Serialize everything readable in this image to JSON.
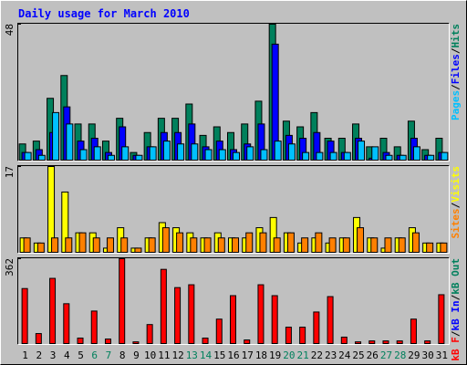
{
  "chart_data": [
    {
      "type": "bar",
      "title": "Daily usage for March 2010",
      "ylim": [
        0,
        48
      ],
      "yticks": [
        48
      ],
      "legend_separator": "/",
      "legend_reversed": true,
      "series": [
        {
          "name": "Hits",
          "color": "#00805c",
          "values": [
            6,
            7,
            22,
            30,
            13,
            13,
            7,
            15,
            3,
            10,
            15,
            15,
            20,
            9,
            12,
            10,
            13,
            21,
            48,
            14,
            12,
            17,
            8,
            8,
            13,
            5,
            8,
            5,
            14,
            4,
            8
          ]
        },
        {
          "name": "Files",
          "color": "#0000ff",
          "values": [
            3,
            4,
            10,
            19,
            7,
            8,
            3,
            12,
            2,
            5,
            10,
            10,
            13,
            5,
            7,
            4,
            6,
            13,
            41,
            9,
            8,
            10,
            7,
            3,
            8,
            1,
            3,
            2,
            8,
            2,
            3
          ]
        },
        {
          "name": "Pages",
          "color": "#00c0ff",
          "values": [
            3,
            2,
            17,
            13,
            4,
            5,
            2,
            5,
            2,
            5,
            7,
            6,
            6,
            4,
            4,
            3,
            5,
            4,
            7,
            6,
            3,
            3,
            3,
            3,
            7,
            5,
            2,
            2,
            5,
            2,
            3
          ]
        }
      ]
    },
    {
      "type": "bar",
      "ylim": [
        0,
        17
      ],
      "yticks": [
        17
      ],
      "legend_separator": "/",
      "legend_reversed": true,
      "series": [
        {
          "name": "Visits",
          "color": "#ffff00",
          "values": [
            3,
            2,
            17,
            12,
            4,
            4,
            1,
            5,
            1,
            3,
            6,
            5,
            4,
            3,
            4,
            3,
            3,
            5,
            7,
            4,
            2,
            3,
            2,
            3,
            7,
            3,
            1,
            3,
            5,
            2,
            2
          ]
        },
        {
          "name": "Sites",
          "color": "#ff8000",
          "values": [
            3,
            2,
            3,
            3,
            4,
            3,
            3,
            3,
            1,
            3,
            5,
            4,
            3,
            3,
            3,
            3,
            4,
            4,
            3,
            4,
            3,
            4,
            3,
            3,
            5,
            3,
            3,
            3,
            4,
            2,
            2
          ]
        }
      ]
    },
    {
      "type": "bar",
      "ylim": [
        0,
        362
      ],
      "yticks": [
        362
      ],
      "legend_separator": "/",
      "legend_reversed": false,
      "categories": [
        "1",
        "2",
        "3",
        "4",
        "5",
        "6",
        "7",
        "8",
        "9",
        "10",
        "11",
        "12",
        "13",
        "14",
        "15",
        "16",
        "17",
        "18",
        "19",
        "20",
        "21",
        "22",
        "23",
        "24",
        "25",
        "26",
        "27",
        "28",
        "29",
        "30",
        "31"
      ],
      "category_colors": [
        "#000000",
        "#000000",
        "#000000",
        "#000000",
        "#000000",
        "#00805c",
        "#00805c",
        "#000000",
        "#000000",
        "#000000",
        "#000000",
        "#000000",
        "#00805c",
        "#00805c",
        "#000000",
        "#000000",
        "#000000",
        "#000000",
        "#000000",
        "#00805c",
        "#00805c",
        "#000000",
        "#000000",
        "#000000",
        "#000000",
        "#000000",
        "#00805c",
        "#00805c",
        "#000000",
        "#000000",
        "#000000"
      ],
      "series": [
        {
          "name": "kB F",
          "color": "#ff0000",
          "values": [
            236,
            46,
            279,
            172,
            27,
            141,
            23,
            362,
            11,
            84,
            317,
            240,
            252,
            27,
            107,
            206,
            19,
            252,
            206,
            73,
            73,
            137,
            202,
            31,
            11,
            15,
            15,
            15,
            107,
            15,
            210
          ]
        },
        {
          "name": "kB In",
          "color": "#0000ff",
          "values": [
            0,
            0,
            0,
            0,
            0,
            0,
            0,
            0,
            0,
            0,
            0,
            0,
            0,
            0,
            0,
            0,
            0,
            0,
            0,
            0,
            0,
            0,
            0,
            0,
            0,
            0,
            0,
            0,
            0,
            0,
            0
          ]
        },
        {
          "name": "kB Out",
          "color": "#00805c",
          "values": [
            0,
            0,
            0,
            0,
            0,
            0,
            0,
            0,
            0,
            0,
            0,
            0,
            0,
            0,
            0,
            0,
            0,
            0,
            0,
            0,
            0,
            0,
            0,
            0,
            0,
            0,
            0,
            0,
            0,
            0,
            0
          ]
        }
      ]
    }
  ]
}
